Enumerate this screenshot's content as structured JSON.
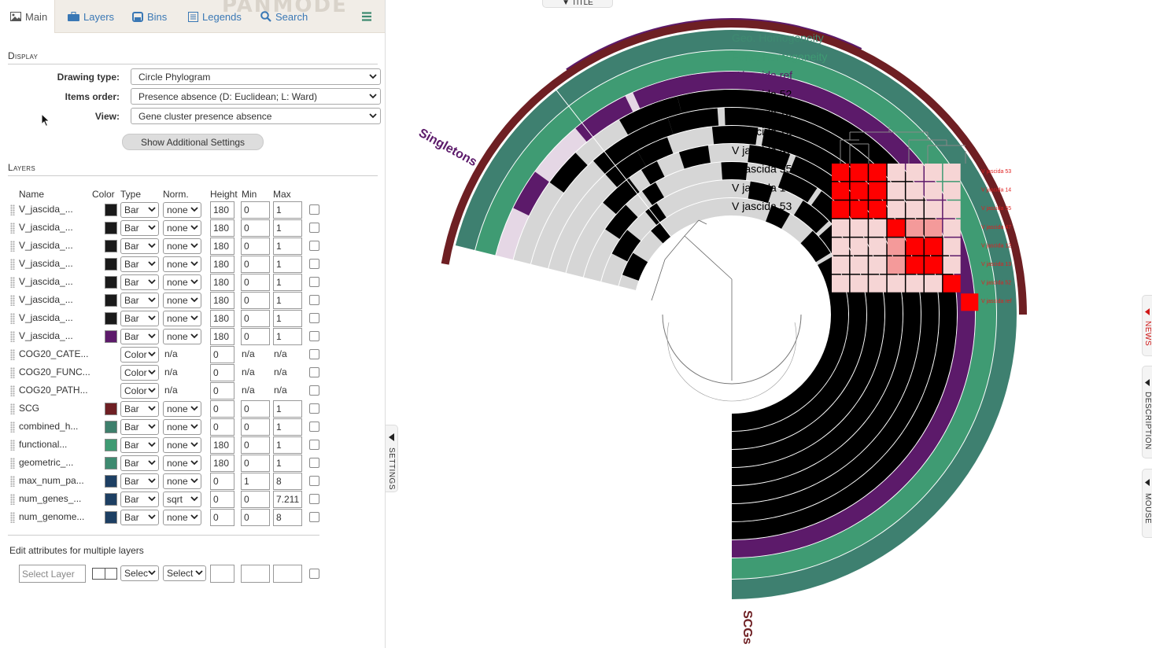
{
  "tabs": [
    {
      "label": "Main",
      "icon": "image-icon"
    },
    {
      "label": "Layers",
      "icon": "briefcase-icon"
    },
    {
      "label": "Bins",
      "icon": "bins-icon"
    },
    {
      "label": "Legends",
      "icon": "list-icon"
    },
    {
      "label": "Search",
      "icon": "search-icon"
    }
  ],
  "watermark": "PANMODE",
  "display": {
    "title": "Display",
    "fields": [
      {
        "label": "Drawing type:",
        "value": "Circle Phylogram"
      },
      {
        "label": "Items order:",
        "value": "Presence absence (D: Euclidean; L: Ward)"
      },
      {
        "label": "View:",
        "value": "Gene cluster presence absence"
      }
    ],
    "more_button": "Show Additional Settings"
  },
  "layers": {
    "title": "Layers",
    "columns": [
      "Name",
      "Color",
      "Type",
      "Norm.",
      "Height",
      "Min",
      "Max"
    ],
    "rows": [
      {
        "name": "V_jascida_...",
        "color": "#1a1a1a",
        "type": "Bar",
        "norm": "none",
        "height": "180",
        "min": "0",
        "max": "1"
      },
      {
        "name": "V_jascida_...",
        "color": "#1a1a1a",
        "type": "Bar",
        "norm": "none",
        "height": "180",
        "min": "0",
        "max": "1"
      },
      {
        "name": "V_jascida_...",
        "color": "#1a1a1a",
        "type": "Bar",
        "norm": "none",
        "height": "180",
        "min": "0",
        "max": "1"
      },
      {
        "name": "V_jascida_...",
        "color": "#1a1a1a",
        "type": "Bar",
        "norm": "none",
        "height": "180",
        "min": "0",
        "max": "1"
      },
      {
        "name": "V_jascida_...",
        "color": "#1a1a1a",
        "type": "Bar",
        "norm": "none",
        "height": "180",
        "min": "0",
        "max": "1"
      },
      {
        "name": "V_jascida_...",
        "color": "#1a1a1a",
        "type": "Bar",
        "norm": "none",
        "height": "180",
        "min": "0",
        "max": "1"
      },
      {
        "name": "V_jascida_...",
        "color": "#1a1a1a",
        "type": "Bar",
        "norm": "none",
        "height": "180",
        "min": "0",
        "max": "1"
      },
      {
        "name": "V_jascida_...",
        "color": "#5c1a6a",
        "type": "Bar",
        "norm": "none",
        "height": "180",
        "min": "0",
        "max": "1"
      },
      {
        "name": "COG20_CATE...",
        "color": "",
        "type": "Color",
        "norm": "n/a",
        "height": "0",
        "min": "n/a",
        "max": "n/a"
      },
      {
        "name": "COG20_FUNC...",
        "color": "",
        "type": "Color",
        "norm": "n/a",
        "height": "0",
        "min": "n/a",
        "max": "n/a"
      },
      {
        "name": "COG20_PATH...",
        "color": "",
        "type": "Color",
        "norm": "n/a",
        "height": "0",
        "min": "n/a",
        "max": "n/a"
      },
      {
        "name": "SCG",
        "color": "#6e1f23",
        "type": "Bar",
        "norm": "none",
        "height": "0",
        "min": "0",
        "max": "1"
      },
      {
        "name": "combined_h...",
        "color": "#3e7f6c",
        "type": "Bar",
        "norm": "none",
        "height": "0",
        "min": "0",
        "max": "1"
      },
      {
        "name": "functional...",
        "color": "#3f9b73",
        "type": "Bar",
        "norm": "none",
        "height": "180",
        "min": "0",
        "max": "1"
      },
      {
        "name": "geometric_...",
        "color": "#3e8a70",
        "type": "Bar",
        "norm": "none",
        "height": "180",
        "min": "0",
        "max": "1"
      },
      {
        "name": "max_num_pa...",
        "color": "#1d3f63",
        "type": "Bar",
        "norm": "none",
        "height": "0",
        "min": "1",
        "max": "8"
      },
      {
        "name": "num_genes_...",
        "color": "#1d3f63",
        "type": "Bar",
        "norm": "sqrt",
        "height": "0",
        "min": "0",
        "max": "7.211"
      },
      {
        "name": "num_genome...",
        "color": "#1d3f63",
        "type": "Bar",
        "norm": "none",
        "height": "0",
        "min": "0",
        "max": "8"
      }
    ],
    "multi_title": "Edit attributes for multiple layers",
    "multi_placeholder": "Select Layer",
    "multi_type": "Selec",
    "multi_norm": "Select"
  },
  "toggles": {
    "settings": "SETTINGS",
    "title": "▼ TITLE",
    "news": "NEWS",
    "description": "DESCRIPTION",
    "mouse": "MOUSE"
  },
  "viz": {
    "ring_labels": [
      {
        "text": "Geo. Homogeneity",
        "color": "#3e8a70"
      },
      {
        "text": "Func. Homogeneity",
        "color": "#3f9b73"
      },
      {
        "text": "V jascida ref",
        "color": "#5c1a6a"
      },
      {
        "text": "V jascida 52",
        "color": "#000000"
      },
      {
        "text": "V jascida 13",
        "color": "#000000"
      },
      {
        "text": "V jascida 12",
        "color": "#000000"
      },
      {
        "text": "V jascida 47",
        "color": "#000000"
      },
      {
        "text": "V jascida 55",
        "color": "#000000"
      },
      {
        "text": "V jascida 14",
        "color": "#000000"
      },
      {
        "text": "V jascida 53",
        "color": "#000000"
      }
    ],
    "bin_labels": [
      {
        "text": "Singletons",
        "color": "#5c1a6a"
      },
      {
        "text": "SCGs",
        "color": "#6e1f23"
      }
    ],
    "heatmap_labels": [
      "V jascida 53",
      "V jascida 14",
      "V jascida 55",
      "V jascida 47",
      "V jascida 12",
      "V jascida 13",
      "V jascida 52",
      "V jascida ref"
    ]
  }
}
